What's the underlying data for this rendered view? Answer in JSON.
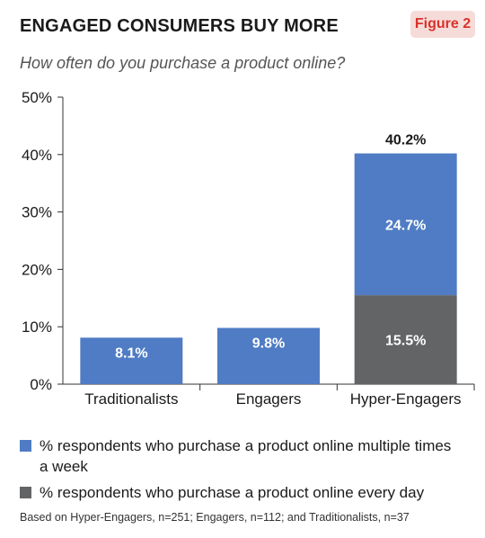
{
  "header": {
    "title": "ENGAGED CONSUMERS BUY MORE",
    "badge": "Figure 2",
    "subtitle": "How often do you purchase a product online?"
  },
  "colors": {
    "multiple_week": "#4f7cc4",
    "every_day": "#636466",
    "badge_bg": "#f6dcd9",
    "badge_text": "#d9322b"
  },
  "chart_data": {
    "type": "bar",
    "stacked": true,
    "categories": [
      "Traditionalists",
      "Engagers",
      "Hyper-Engagers"
    ],
    "series": [
      {
        "name": "% respondents who purchase a product online every day",
        "values": [
          0,
          0,
          15.5
        ],
        "labels": [
          "",
          "",
          "15.5%"
        ]
      },
      {
        "name": "% respondents who purchase a product online multiple times a week",
        "values": [
          8.1,
          9.8,
          24.7
        ],
        "labels": [
          "8.1%",
          "9.8%",
          "24.7%"
        ]
      }
    ],
    "totals": [
      "",
      "",
      "40.2%"
    ],
    "ylim": [
      0,
      50
    ],
    "yticks": [
      "0%",
      "10%",
      "20%",
      "30%",
      "40%",
      "50%"
    ],
    "legend_position": "bottom",
    "grid": false
  },
  "legend": {
    "items": [
      {
        "label_line1": "% respondents who purchase a product online multiple times",
        "label_line2": "a week"
      },
      {
        "label_line1": "% respondents who purchase a product online every day",
        "label_line2": ""
      }
    ]
  },
  "footnote": "Based on Hyper-Engagers, n=251; Engagers, n=112; and Traditionalists,  n=37"
}
